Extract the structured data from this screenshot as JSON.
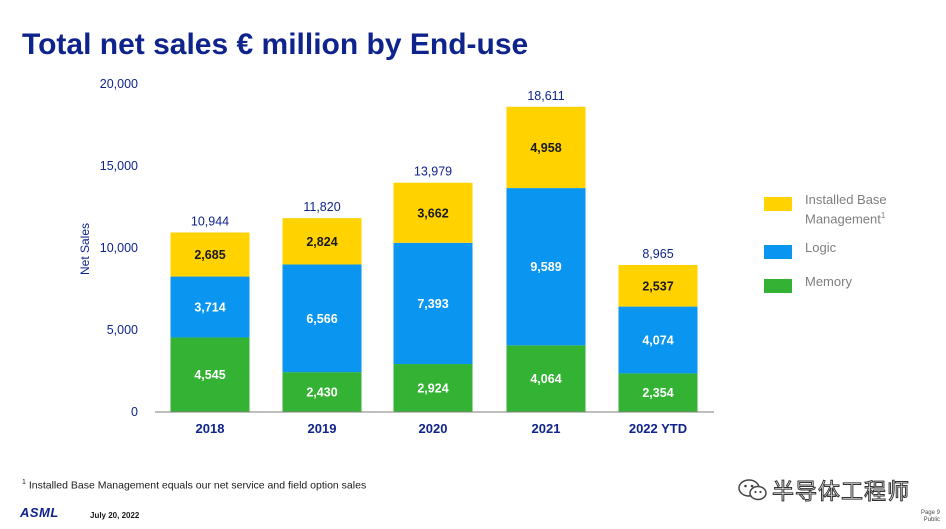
{
  "title": "Total net sales € million by End-use",
  "chart_data": {
    "type": "bar",
    "stacked": true,
    "title": "Total net sales € million by End-use",
    "ylabel": "Net Sales",
    "xlabel": "",
    "ylim": [
      0,
      20000
    ],
    "yticks": [
      0,
      5000,
      10000,
      15000,
      20000
    ],
    "ytick_labels": [
      "0",
      "5,000",
      "10,000",
      "15,000",
      "20,000"
    ],
    "categories": [
      "2018",
      "2019",
      "2020",
      "2021",
      "2022 YTD"
    ],
    "series": [
      {
        "name": "Memory",
        "color": "#33b233",
        "values": [
          4545,
          2430,
          2924,
          4064,
          2354
        ],
        "labels": [
          "4,545",
          "2,430",
          "2,924",
          "4,064",
          "2,354"
        ]
      },
      {
        "name": "Logic",
        "color": "#0a96f0",
        "values": [
          3714,
          6566,
          7393,
          9589,
          4074
        ],
        "labels": [
          "3,714",
          "6,566",
          "7,393",
          "9,589",
          "4,074"
        ]
      },
      {
        "name": "Installed Base Management",
        "color": "#ffd200",
        "values": [
          2685,
          2824,
          3662,
          4958,
          2537
        ],
        "labels": [
          "2,685",
          "2,824",
          "3,662",
          "4,958",
          "2,537"
        ]
      }
    ],
    "totals": [
      10944,
      11820,
      13979,
      18611,
      8965
    ],
    "total_labels": [
      "10,944",
      "11,820",
      "13,979",
      "18,611",
      "8,965"
    ],
    "grid": false,
    "legend_position": "right"
  },
  "legend": {
    "items": [
      {
        "label": "Installed Base Management",
        "sup": "1",
        "color": "#ffd200"
      },
      {
        "label": "Logic",
        "sup": "",
        "color": "#0a96f0"
      },
      {
        "label": "Memory",
        "sup": "",
        "color": "#33b233"
      }
    ]
  },
  "footnote": {
    "marker": "1",
    "text": " Installed Base Management equals our net service and field option sales"
  },
  "footer": {
    "logo": "ASML",
    "date": "July 20, 2022",
    "page": "Page 9",
    "classification": "Public"
  },
  "watermark": {
    "text": "半导体工程师",
    "icon": "wechat-icon"
  }
}
